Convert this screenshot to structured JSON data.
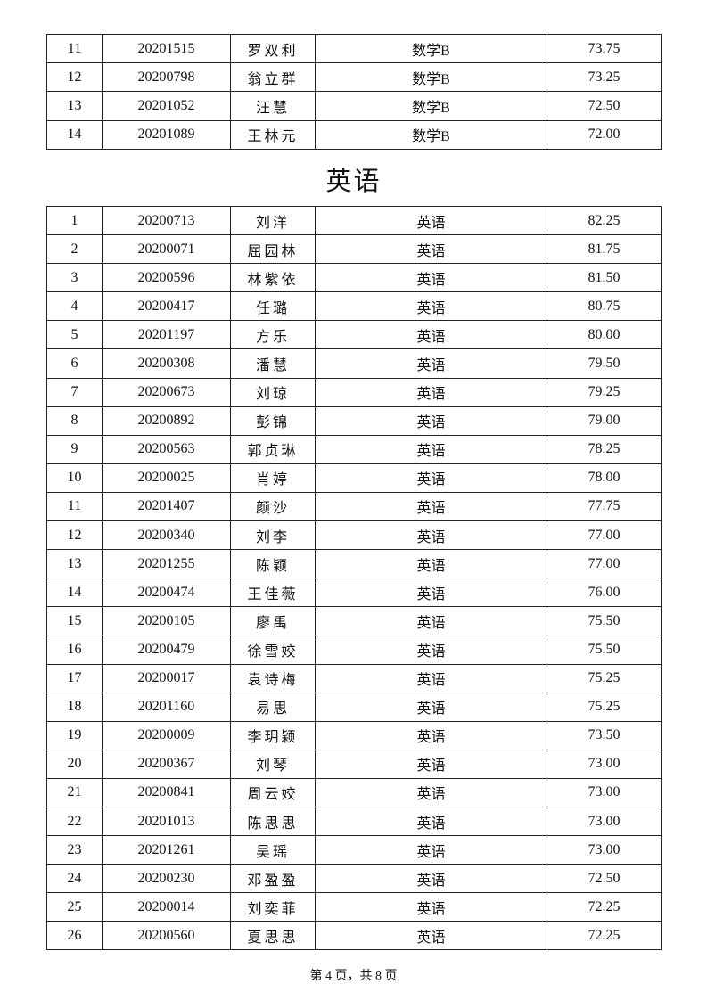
{
  "top_table": {
    "rows": [
      {
        "no": "11",
        "id": "20201515",
        "name": "罗双利",
        "subject": "数学B",
        "score": "73.75"
      },
      {
        "no": "12",
        "id": "20200798",
        "name": "翁立群",
        "subject": "数学B",
        "score": "73.25"
      },
      {
        "no": "13",
        "id": "20201052",
        "name": "汪慧",
        "subject": "数学B",
        "score": "72.50"
      },
      {
        "no": "14",
        "id": "20201089",
        "name": "王林元",
        "subject": "数学B",
        "score": "72.00"
      }
    ]
  },
  "section_title": "英语",
  "english_table": {
    "rows": [
      {
        "no": "1",
        "id": "20200713",
        "name": "刘洋",
        "subject": "英语",
        "score": "82.25"
      },
      {
        "no": "2",
        "id": "20200071",
        "name": "屈园林",
        "subject": "英语",
        "score": "81.75"
      },
      {
        "no": "3",
        "id": "20200596",
        "name": "林紫依",
        "subject": "英语",
        "score": "81.50"
      },
      {
        "no": "4",
        "id": "20200417",
        "name": "任璐",
        "subject": "英语",
        "score": "80.75"
      },
      {
        "no": "5",
        "id": "20201197",
        "name": "方乐",
        "subject": "英语",
        "score": "80.00"
      },
      {
        "no": "6",
        "id": "20200308",
        "name": "潘慧",
        "subject": "英语",
        "score": "79.50"
      },
      {
        "no": "7",
        "id": "20200673",
        "name": "刘琼",
        "subject": "英语",
        "score": "79.25"
      },
      {
        "no": "8",
        "id": "20200892",
        "name": "彭锦",
        "subject": "英语",
        "score": "79.00"
      },
      {
        "no": "9",
        "id": "20200563",
        "name": "郭贞琳",
        "subject": "英语",
        "score": "78.25"
      },
      {
        "no": "10",
        "id": "20200025",
        "name": "肖婷",
        "subject": "英语",
        "score": "78.00"
      },
      {
        "no": "11",
        "id": "20201407",
        "name": "颜沙",
        "subject": "英语",
        "score": "77.75"
      },
      {
        "no": "12",
        "id": "20200340",
        "name": "刘李",
        "subject": "英语",
        "score": "77.00"
      },
      {
        "no": "13",
        "id": "20201255",
        "name": "陈颖",
        "subject": "英语",
        "score": "77.00"
      },
      {
        "no": "14",
        "id": "20200474",
        "name": "王佳薇",
        "subject": "英语",
        "score": "76.00"
      },
      {
        "no": "15",
        "id": "20200105",
        "name": "廖禹",
        "subject": "英语",
        "score": "75.50"
      },
      {
        "no": "16",
        "id": "20200479",
        "name": "徐雪姣",
        "subject": "英语",
        "score": "75.50"
      },
      {
        "no": "17",
        "id": "20200017",
        "name": "袁诗梅",
        "subject": "英语",
        "score": "75.25"
      },
      {
        "no": "18",
        "id": "20201160",
        "name": "易思",
        "subject": "英语",
        "score": "75.25"
      },
      {
        "no": "19",
        "id": "20200009",
        "name": "李玥颖",
        "subject": "英语",
        "score": "73.50"
      },
      {
        "no": "20",
        "id": "20200367",
        "name": "刘琴",
        "subject": "英语",
        "score": "73.00"
      },
      {
        "no": "21",
        "id": "20200841",
        "name": "周云姣",
        "subject": "英语",
        "score": "73.00"
      },
      {
        "no": "22",
        "id": "20201013",
        "name": "陈思思",
        "subject": "英语",
        "score": "73.00"
      },
      {
        "no": "23",
        "id": "20201261",
        "name": "吴瑶",
        "subject": "英语",
        "score": "73.00"
      },
      {
        "no": "24",
        "id": "20200230",
        "name": "邓盈盈",
        "subject": "英语",
        "score": "72.50"
      },
      {
        "no": "25",
        "id": "20200014",
        "name": "刘奕菲",
        "subject": "英语",
        "score": "72.25"
      },
      {
        "no": "26",
        "id": "20200560",
        "name": "夏思思",
        "subject": "英语",
        "score": "72.25"
      }
    ]
  },
  "footer": "第 4 页，共 8 页"
}
